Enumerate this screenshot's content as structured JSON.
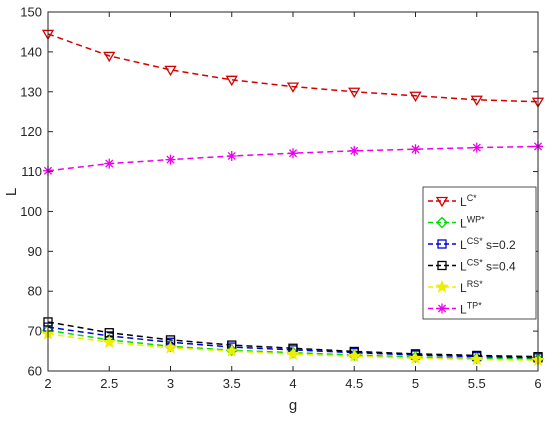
{
  "chart_data": {
    "type": "line",
    "xlabel": "g",
    "ylabel": "L",
    "xlim": [
      2,
      6
    ],
    "ylim": [
      60,
      150
    ],
    "grid": false,
    "legend_position": "right",
    "x": [
      2,
      2.5,
      3,
      3.5,
      4,
      4.5,
      5,
      5.5,
      6
    ],
    "x_tick_labels": [
      "2",
      "2.5",
      "3",
      "3.5",
      "4",
      "4.5",
      "5",
      "5.5",
      "6"
    ],
    "y_ticks": [
      60,
      70,
      80,
      90,
      100,
      110,
      120,
      130,
      140,
      150
    ],
    "y_tick_labels": [
      "60",
      "70",
      "80",
      "90",
      "100",
      "110",
      "120",
      "130",
      "140",
      "150"
    ],
    "series": [
      {
        "name": "LC*",
        "label_base": "L",
        "label_sup": "C*",
        "label_suffix": "",
        "color": "#d40000",
        "marker": "triangle-down",
        "values": [
          144.5,
          139.0,
          135.5,
          133.0,
          131.3,
          130.0,
          129.0,
          128.0,
          127.5
        ]
      },
      {
        "name": "LWP*",
        "label_base": "L",
        "label_sup": "WP*",
        "label_suffix": "",
        "color": "#00dd00",
        "marker": "diamond",
        "values": [
          70.2,
          67.8,
          66.2,
          65.2,
          64.6,
          64.0,
          63.5,
          63.2,
          63.0
        ]
      },
      {
        "name": "LCS* s=0.2",
        "label_base": "L",
        "label_sup": "CS*",
        "label_suffix": "s=0.2",
        "color": "#0000dd",
        "marker": "square",
        "values": [
          71.0,
          68.8,
          67.2,
          66.0,
          65.3,
          64.6,
          64.0,
          63.6,
          63.3
        ]
      },
      {
        "name": "LCS* s=0.4",
        "label_base": "L",
        "label_sup": "CS*",
        "label_suffix": "s=0.4",
        "color": "#000000",
        "marker": "square",
        "values": [
          72.3,
          69.6,
          67.8,
          66.5,
          65.7,
          64.9,
          64.3,
          63.9,
          63.6
        ]
      },
      {
        "name": "LRS*",
        "label_base": "L",
        "label_sup": "RS*",
        "label_suffix": "",
        "color": "#eeee00",
        "marker": "star",
        "values": [
          69.3,
          67.2,
          65.8,
          65.0,
          64.2,
          63.7,
          63.2,
          62.9,
          62.7
        ]
      },
      {
        "name": "LTP*",
        "label_base": "L",
        "label_sup": "TP*",
        "label_suffix": "",
        "color": "#ee00ee",
        "marker": "asterisk",
        "values": [
          110.2,
          112.0,
          113.0,
          113.9,
          114.6,
          115.2,
          115.6,
          116.0,
          116.3
        ]
      }
    ]
  }
}
